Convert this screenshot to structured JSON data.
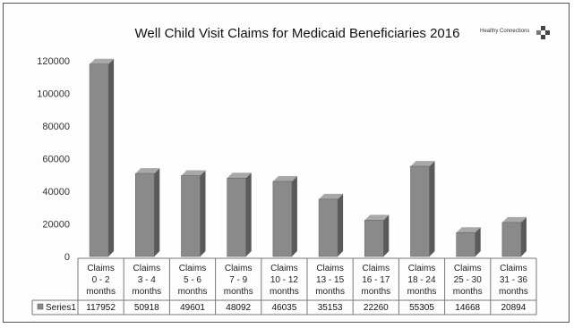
{
  "chart_data": {
    "type": "bar",
    "title": "Well Child Visit Claims for Medicaid Beneficiaries 2016",
    "logo_text": "Healthy Connections",
    "categories": [
      [
        "Claims",
        "0 - 2",
        "months"
      ],
      [
        "Claims",
        "3 - 4",
        "months"
      ],
      [
        "Claims",
        "5 - 6",
        "months"
      ],
      [
        "Claims",
        "7 - 9",
        "months"
      ],
      [
        "Claims",
        "10 - 12",
        "months"
      ],
      [
        "Claims",
        "13 - 15",
        "months"
      ],
      [
        "Claims",
        "16 - 17",
        "months"
      ],
      [
        "Claims",
        "18 - 24",
        "months"
      ],
      [
        "Claims",
        "25 - 30",
        "months"
      ],
      [
        "Claims",
        "31 - 36",
        "months"
      ]
    ],
    "series": [
      {
        "name": "Series1",
        "values": [
          117952,
          50918,
          49601,
          48092,
          46035,
          35153,
          22260,
          55305,
          14668,
          20894
        ],
        "value_labels": [
          "117952",
          "50918",
          "49601",
          "48092",
          "46035",
          "35153",
          "22260",
          "55305",
          "14668",
          "20894"
        ]
      }
    ],
    "yticks": [
      "0",
      "20000",
      "40000",
      "60000",
      "80000",
      "100000",
      "120000"
    ],
    "ylim": [
      0,
      120000
    ],
    "data_table": true,
    "grid": false,
    "colors": {
      "bar_front": "#8a8a8a",
      "bar_side": "#5a5a5a",
      "bar_top": "#a8a8a8"
    }
  }
}
